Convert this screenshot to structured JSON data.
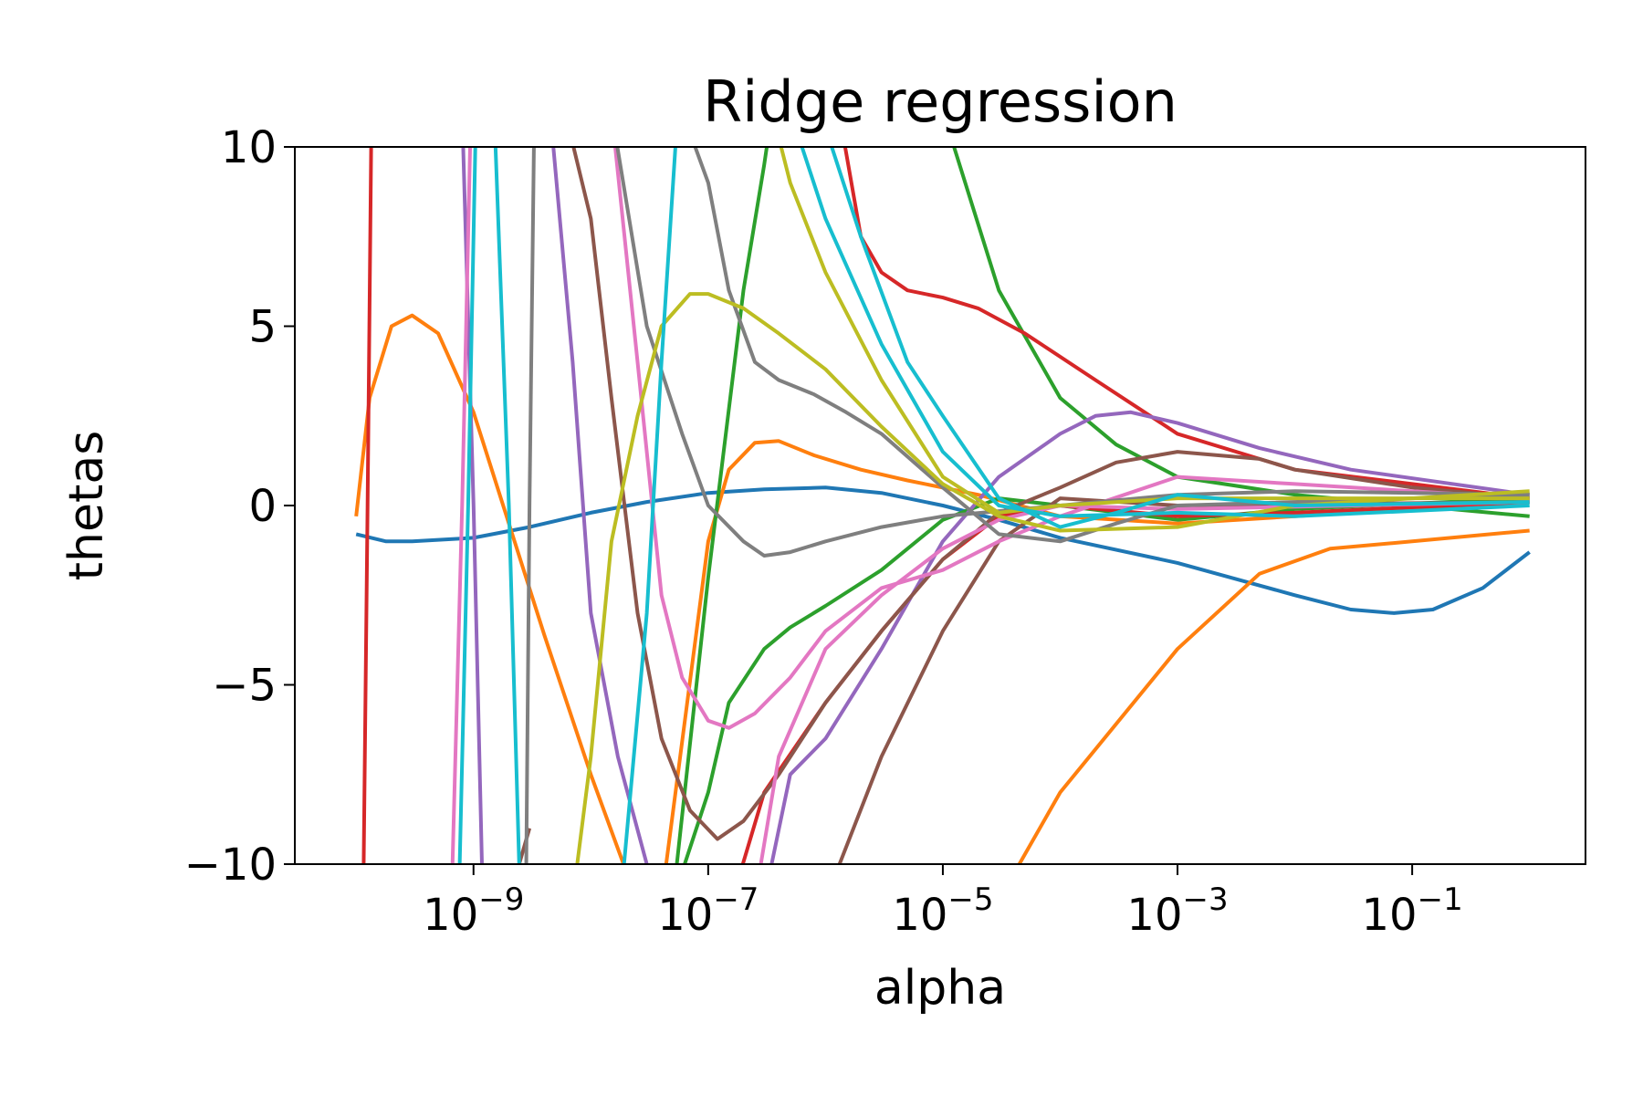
{
  "chart_data": {
    "type": "line",
    "title": "Ridge regression",
    "xlabel": "alpha",
    "ylabel": "thetas",
    "x_scale": "log",
    "xlim": [
      3e-11,
      3.0
    ],
    "ylim": [
      -10,
      10
    ],
    "x_ticks": [
      {
        "value": 1e-09,
        "label": "10",
        "exp": "−9"
      },
      {
        "value": 1e-07,
        "label": "10",
        "exp": "−7"
      },
      {
        "value": 1e-05,
        "label": "10",
        "exp": "−5"
      },
      {
        "value": 0.001,
        "label": "10",
        "exp": "−3"
      },
      {
        "value": 0.1,
        "label": "10",
        "exp": "−1"
      }
    ],
    "y_ticks": [
      {
        "value": 10,
        "label": "10"
      },
      {
        "value": 5,
        "label": "5"
      },
      {
        "value": 0,
        "label": "0"
      },
      {
        "value": -5,
        "label": "−5"
      },
      {
        "value": -10,
        "label": "−10"
      }
    ],
    "grid": false,
    "legend": "none",
    "series": [
      {
        "color": "#1f77b4",
        "points": [
          [
            1e-10,
            -0.8
          ],
          [
            1.8e-10,
            -1.0
          ],
          [
            3e-10,
            -1.0
          ],
          [
            1e-09,
            -0.9
          ],
          [
            3e-09,
            -0.6
          ],
          [
            1e-08,
            -0.2
          ],
          [
            3e-08,
            0.1
          ],
          [
            1e-07,
            0.35
          ],
          [
            3e-07,
            0.45
          ],
          [
            1e-06,
            0.5
          ],
          [
            3e-06,
            0.35
          ],
          [
            1e-05,
            0.0
          ],
          [
            3e-05,
            -0.4
          ],
          [
            0.0001,
            -0.9
          ],
          [
            0.001,
            -1.6
          ],
          [
            0.01,
            -2.5
          ],
          [
            0.03,
            -2.9
          ],
          [
            0.07,
            -3.0
          ],
          [
            0.15,
            -2.9
          ],
          [
            0.4,
            -2.3
          ],
          [
            1,
            -1.3
          ]
        ]
      },
      {
        "color": "#ff7f0e",
        "points": [
          [
            1e-10,
            -0.3
          ],
          [
            1.3e-10,
            3.0
          ],
          [
            2e-10,
            5.0
          ],
          [
            3e-10,
            5.3
          ],
          [
            5e-10,
            4.8
          ],
          [
            1e-09,
            2.6
          ],
          [
            2e-09,
            -0.5
          ],
          [
            4e-09,
            -3.6
          ],
          [
            1e-08,
            -7.5
          ],
          [
            2e-08,
            -10.2
          ]
        ]
      },
      {
        "color": "#ff7f0e",
        "points": [
          [
            4e-08,
            -11
          ],
          [
            1e-07,
            -1.0
          ],
          [
            1.5e-07,
            1.0
          ],
          [
            2.5e-07,
            1.75
          ],
          [
            4e-07,
            1.8
          ],
          [
            8e-07,
            1.4
          ],
          [
            2e-06,
            1.0
          ],
          [
            5e-06,
            0.7
          ],
          [
            2e-05,
            0.3
          ],
          [
            0.0001,
            -0.3
          ],
          [
            0.001,
            -0.5
          ],
          [
            0.01,
            -0.3
          ],
          [
            1,
            0.1
          ]
        ]
      },
      {
        "color": "#ff7f0e",
        "points": [
          [
            3e-05,
            -11
          ],
          [
            0.0001,
            -8.0
          ],
          [
            0.001,
            -4.0
          ],
          [
            0.005,
            -1.9
          ],
          [
            0.02,
            -1.2
          ],
          [
            0.1,
            -1.0
          ],
          [
            1,
            -0.7
          ]
        ]
      },
      {
        "color": "#2ca02c",
        "points": [
          [
            5e-08,
            -11
          ],
          [
            1e-07,
            -8.0
          ],
          [
            1.5e-07,
            -5.5
          ],
          [
            3e-07,
            -4.0
          ],
          [
            5e-07,
            -3.4
          ],
          [
            1e-06,
            -2.8
          ],
          [
            3e-06,
            -1.8
          ],
          [
            1e-05,
            -0.4
          ],
          [
            3e-05,
            0.2
          ],
          [
            0.0001,
            0.0
          ],
          [
            0.001,
            -0.4
          ],
          [
            0.01,
            -0.1
          ],
          [
            1,
            0.2
          ]
        ]
      },
      {
        "color": "#2ca02c",
        "points": [
          [
            5e-08,
            -11
          ],
          [
            1e-07,
            -2.0
          ],
          [
            2e-07,
            6.0
          ],
          [
            3e-07,
            9.5
          ],
          [
            3.5e-07,
            11
          ]
        ]
      },
      {
        "color": "#2ca02c",
        "points": [
          [
            1e-05,
            11
          ],
          [
            3e-05,
            6.0
          ],
          [
            0.0001,
            3.0
          ],
          [
            0.0003,
            1.7
          ],
          [
            0.001,
            0.8
          ],
          [
            0.01,
            0.3
          ],
          [
            0.1,
            0.0
          ],
          [
            1,
            -0.3
          ]
        ]
      },
      {
        "color": "#d62728",
        "points": [
          [
            1.15e-10,
            -11
          ],
          [
            1.25e-10,
            0.0
          ],
          [
            1.35e-10,
            11
          ]
        ]
      },
      {
        "color": "#d62728",
        "points": [
          [
            1.6e-07,
            -11
          ],
          [
            3e-07,
            -8.0
          ],
          [
            1e-06,
            -5.5
          ],
          [
            3e-06,
            -3.5
          ],
          [
            1e-05,
            -1.5
          ],
          [
            3e-05,
            -0.3
          ],
          [
            0.0001,
            0.0
          ],
          [
            0.001,
            -0.3
          ],
          [
            0.01,
            -0.2
          ],
          [
            1,
            0.1
          ]
        ]
      },
      {
        "color": "#d62728",
        "points": [
          [
            1.3e-06,
            11
          ],
          [
            2e-06,
            7.5
          ],
          [
            3e-06,
            6.5
          ],
          [
            5e-06,
            6.0
          ],
          [
            1e-05,
            5.8
          ],
          [
            2e-05,
            5.5
          ],
          [
            5e-05,
            4.8
          ],
          [
            0.0002,
            3.5
          ],
          [
            0.001,
            2.0
          ],
          [
            0.01,
            1.0
          ],
          [
            1,
            0.2
          ]
        ]
      },
      {
        "color": "#9467bd",
        "points": [
          [
            8e-10,
            11
          ],
          [
            1e-09,
            0.0
          ],
          [
            1.2e-09,
            -11
          ]
        ]
      },
      {
        "color": "#9467bd",
        "points": [
          [
            4.5e-09,
            11
          ],
          [
            7e-09,
            4.0
          ],
          [
            1e-08,
            -3.0
          ],
          [
            1.7e-08,
            -7.0
          ],
          [
            3e-08,
            -10.0
          ],
          [
            4e-08,
            -11
          ]
        ]
      },
      {
        "color": "#9467bd",
        "points": [
          [
            3e-07,
            -11
          ],
          [
            5e-07,
            -7.5
          ],
          [
            1e-06,
            -6.5
          ],
          [
            3e-06,
            -4.0
          ],
          [
            1e-05,
            -1.0
          ],
          [
            3e-05,
            0.8
          ],
          [
            0.0001,
            2.0
          ],
          [
            0.0002,
            2.5
          ],
          [
            0.0004,
            2.6
          ],
          [
            0.001,
            2.3
          ],
          [
            0.005,
            1.6
          ],
          [
            0.03,
            1.0
          ],
          [
            1,
            0.3
          ]
        ]
      },
      {
        "color": "#8c564b",
        "points": [
          [
            2e-09,
            -11
          ],
          [
            3e-09,
            -9.0
          ]
        ]
      },
      {
        "color": "#8c564b",
        "points": [
          [
            6e-09,
            11
          ],
          [
            1e-08,
            8.0
          ],
          [
            1.5e-08,
            3.0
          ],
          [
            2.5e-08,
            -3.0
          ],
          [
            4e-08,
            -6.5
          ],
          [
            7e-08,
            -8.5
          ],
          [
            1.2e-07,
            -9.3
          ],
          [
            2e-07,
            -8.8
          ],
          [
            4e-07,
            -7.5
          ],
          [
            1e-06,
            -5.5
          ],
          [
            3e-06,
            -3.5
          ],
          [
            1e-05,
            -1.5
          ],
          [
            3e-05,
            -0.2
          ],
          [
            0.0001,
            0.5
          ],
          [
            0.0003,
            1.2
          ],
          [
            0.001,
            1.5
          ],
          [
            0.005,
            1.3
          ],
          [
            0.01,
            1.0
          ],
          [
            0.1,
            0.5
          ],
          [
            1,
            0.2
          ]
        ]
      },
      {
        "color": "#8c564b",
        "points": [
          [
            1e-06,
            -11
          ],
          [
            3e-06,
            -7.0
          ],
          [
            1e-05,
            -3.5
          ],
          [
            3e-05,
            -1.0
          ],
          [
            0.0001,
            0.2
          ],
          [
            0.001,
            0.0
          ],
          [
            1,
            0.1
          ]
        ]
      },
      {
        "color": "#e377c2",
        "points": [
          [
            6.5e-10,
            -11
          ],
          [
            8e-10,
            0.0
          ],
          [
            9.5e-10,
            11
          ]
        ]
      },
      {
        "color": "#e377c2",
        "points": [
          [
            1.5e-08,
            11
          ],
          [
            2.5e-08,
            4.0
          ],
          [
            4e-08,
            -2.5
          ],
          [
            6e-08,
            -4.8
          ],
          [
            1e-07,
            -6.0
          ],
          [
            1.5e-07,
            -6.2
          ],
          [
            2.5e-07,
            -5.8
          ],
          [
            5e-07,
            -4.8
          ],
          [
            1e-06,
            -3.5
          ],
          [
            3e-06,
            -2.3
          ],
          [
            1e-05,
            -1.8
          ],
          [
            3e-05,
            -1.0
          ],
          [
            0.0001,
            -0.3
          ],
          [
            0.001,
            0.8
          ],
          [
            0.01,
            0.6
          ],
          [
            1,
            0.2
          ]
        ]
      },
      {
        "color": "#e377c2",
        "points": [
          [
            2.5e-07,
            -11
          ],
          [
            4e-07,
            -7.0
          ],
          [
            1e-06,
            -4.0
          ],
          [
            3e-06,
            -2.5
          ],
          [
            1e-05,
            -1.2
          ],
          [
            3e-05,
            -0.4
          ],
          [
            0.0001,
            0.0
          ],
          [
            0.001,
            -0.1
          ],
          [
            1,
            0.1
          ]
        ]
      },
      {
        "color": "#7f7f7f",
        "points": [
          [
            2.8e-09,
            -11
          ],
          [
            3e-09,
            0.0
          ],
          [
            3.3e-09,
            11
          ]
        ]
      },
      {
        "color": "#7f7f7f",
        "points": [
          [
            1.5e-08,
            11
          ],
          [
            3e-08,
            5.0
          ],
          [
            6e-08,
            2.0
          ],
          [
            1e-07,
            0.0
          ],
          [
            2e-07,
            -1.0
          ],
          [
            3e-07,
            -1.4
          ],
          [
            5e-07,
            -1.3
          ],
          [
            1e-06,
            -1.0
          ],
          [
            3e-06,
            -0.6
          ],
          [
            1e-05,
            -0.3
          ],
          [
            0.0001,
            0.0
          ],
          [
            0.001,
            0.3
          ],
          [
            0.01,
            0.4
          ],
          [
            1,
            0.3
          ]
        ]
      },
      {
        "color": "#7f7f7f",
        "points": [
          [
            6e-08,
            11
          ],
          [
            1e-07,
            9.0
          ],
          [
            1.5e-07,
            6.0
          ],
          [
            2.5e-07,
            4.0
          ],
          [
            4e-07,
            3.5
          ],
          [
            8e-07,
            3.1
          ],
          [
            1.5e-06,
            2.6
          ],
          [
            3e-06,
            2.0
          ],
          [
            1e-05,
            0.5
          ],
          [
            3e-05,
            -0.8
          ],
          [
            0.0001,
            -1.0
          ],
          [
            0.0003,
            -0.5
          ],
          [
            0.001,
            0.0
          ],
          [
            1,
            0.3
          ]
        ]
      },
      {
        "color": "#bcbd22",
        "points": [
          [
            7e-09,
            -11
          ],
          [
            1e-08,
            -7.0
          ],
          [
            1.5e-08,
            -1.0
          ],
          [
            2.5e-08,
            2.5
          ],
          [
            4e-08,
            5.0
          ],
          [
            7e-08,
            5.9
          ],
          [
            1e-07,
            5.9
          ],
          [
            2e-07,
            5.5
          ],
          [
            4e-07,
            4.8
          ],
          [
            1e-06,
            3.8
          ],
          [
            3e-06,
            2.2
          ],
          [
            1e-05,
            0.6
          ],
          [
            3e-05,
            -0.3
          ],
          [
            0.0001,
            -0.7
          ],
          [
            0.001,
            -0.6
          ],
          [
            0.01,
            0.0
          ],
          [
            1,
            0.4
          ]
        ]
      },
      {
        "color": "#bcbd22",
        "points": [
          [
            3.5e-07,
            11
          ],
          [
            5e-07,
            9.0
          ],
          [
            1e-06,
            6.5
          ],
          [
            3e-06,
            3.5
          ],
          [
            1e-05,
            0.8
          ],
          [
            3e-05,
            -0.2
          ],
          [
            0.0001,
            0.0
          ],
          [
            0.001,
            0.2
          ],
          [
            1,
            0.2
          ]
        ]
      },
      {
        "color": "#17becf",
        "points": [
          [
            7.5e-10,
            -11
          ],
          [
            9e-10,
            0.0
          ],
          [
            1.05e-09,
            11
          ]
        ]
      },
      {
        "color": "#17becf",
        "points": [
          [
            1.5e-09,
            11
          ],
          [
            2e-09,
            0.0
          ],
          [
            2.5e-09,
            -11
          ]
        ]
      },
      {
        "color": "#17becf",
        "points": [
          [
            1.8e-08,
            -11
          ],
          [
            3e-08,
            -3.0
          ],
          [
            4e-08,
            4.0
          ],
          [
            5.5e-08,
            11
          ]
        ]
      },
      {
        "color": "#17becf",
        "points": [
          [
            5e-07,
            11
          ],
          [
            1e-06,
            8.0
          ],
          [
            3e-06,
            4.5
          ],
          [
            1e-05,
            1.5
          ],
          [
            3e-05,
            0.0
          ],
          [
            0.0001,
            -0.3
          ],
          [
            0.001,
            -0.2
          ],
          [
            0.01,
            -0.3
          ],
          [
            1,
            0.0
          ]
        ]
      },
      {
        "color": "#17becf",
        "points": [
          [
            9e-07,
            11
          ],
          [
            2e-06,
            7.5
          ],
          [
            5e-06,
            4.0
          ],
          [
            1e-05,
            2.5
          ],
          [
            3e-05,
            0.2
          ],
          [
            0.0001,
            -0.6
          ],
          [
            0.0003,
            -0.2
          ],
          [
            0.001,
            0.3
          ],
          [
            0.01,
            0.0
          ],
          [
            1,
            0.1
          ]
        ]
      }
    ]
  }
}
